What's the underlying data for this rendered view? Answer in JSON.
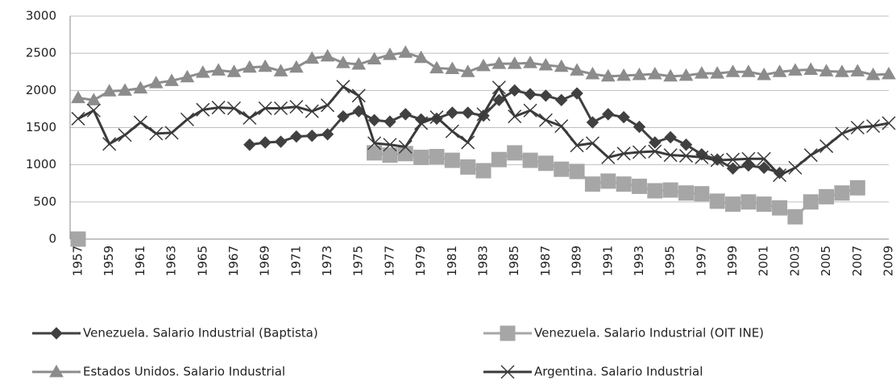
{
  "chart_data": {
    "type": "line",
    "categories": [
      "1957",
      null,
      "1959",
      null,
      "1961",
      null,
      "1963",
      null,
      "1965",
      null,
      "1967",
      null,
      "1969",
      null,
      "1971",
      null,
      "1973",
      null,
      "1975",
      null,
      "1977",
      null,
      "1979",
      null,
      "1981",
      null,
      "1983",
      null,
      "1985",
      null,
      "1987",
      null,
      "1989",
      null,
      "1991",
      null,
      "1993",
      null,
      "1995",
      null,
      "1997",
      null,
      "1999",
      null,
      "2001",
      null,
      "2003",
      null,
      "2005",
      null,
      "2007",
      null,
      "2009"
    ],
    "ylim": [
      0,
      3000
    ],
    "yticks": [
      0,
      500,
      1000,
      1500,
      2000,
      2500,
      3000
    ],
    "grid": true,
    "series": [
      {
        "name": "Venezuela. Salario Industrial (Baptista)",
        "color": "#404040",
        "marker": "diamond",
        "values": [
          null,
          null,
          null,
          null,
          null,
          null,
          null,
          null,
          null,
          null,
          null,
          1270,
          1300,
          1310,
          1380,
          1390,
          1410,
          1650,
          1720,
          1600,
          1580,
          1680,
          1610,
          1620,
          1700,
          1700,
          1660,
          1870,
          2000,
          1950,
          1930,
          1870,
          1960,
          1570,
          1680,
          1640,
          1510,
          1300,
          1370,
          1270,
          1140,
          1070,
          950,
          990,
          960,
          890,
          null,
          null,
          null,
          null,
          null,
          null,
          null
        ]
      },
      {
        "name": "Venezuela. Salario Industrial (OIT INE)",
        "color": "#a6a6a6",
        "marker": "square",
        "values": [
          0,
          null,
          null,
          null,
          null,
          null,
          null,
          null,
          null,
          null,
          null,
          null,
          null,
          null,
          null,
          null,
          null,
          null,
          null,
          1160,
          1130,
          1150,
          1100,
          1110,
          1060,
          970,
          920,
          1070,
          1160,
          1060,
          1020,
          940,
          910,
          740,
          780,
          740,
          710,
          650,
          660,
          620,
          610,
          510,
          470,
          500,
          470,
          420,
          300,
          500,
          570,
          620,
          690,
          null,
          null
        ]
      },
      {
        "name": "Estados Unidos. Salario Industrial",
        "color": "#8c8c8c",
        "marker": "triangle",
        "values": [
          1900,
          1870,
          1990,
          2000,
          2030,
          2100,
          2130,
          2180,
          2240,
          2270,
          2250,
          2310,
          2320,
          2260,
          2310,
          2430,
          2460,
          2370,
          2350,
          2420,
          2480,
          2510,
          2440,
          2300,
          2290,
          2250,
          2330,
          2360,
          2360,
          2370,
          2340,
          2320,
          2270,
          2220,
          2190,
          2200,
          2210,
          2220,
          2190,
          2200,
          2230,
          2230,
          2250,
          2250,
          2210,
          2250,
          2270,
          2280,
          2260,
          2250,
          2260,
          2210,
          2220
        ]
      },
      {
        "name": "Argentina. Salario Industrial",
        "color": "#3a3a3a",
        "marker": "x",
        "values": [
          1620,
          1730,
          1280,
          1400,
          1570,
          1420,
          1430,
          1610,
          1740,
          1770,
          1760,
          1630,
          1760,
          1760,
          1780,
          1720,
          1800,
          2050,
          1930,
          1290,
          1270,
          1240,
          1560,
          1640,
          1450,
          1300,
          1680,
          2040,
          1650,
          1730,
          1600,
          1520,
          1260,
          1290,
          1100,
          1150,
          1170,
          1180,
          1130,
          1120,
          1100,
          1060,
          1070,
          1080,
          1080,
          860,
          960,
          1130,
          1250,
          1420,
          1500,
          1520,
          1560
        ]
      }
    ]
  }
}
